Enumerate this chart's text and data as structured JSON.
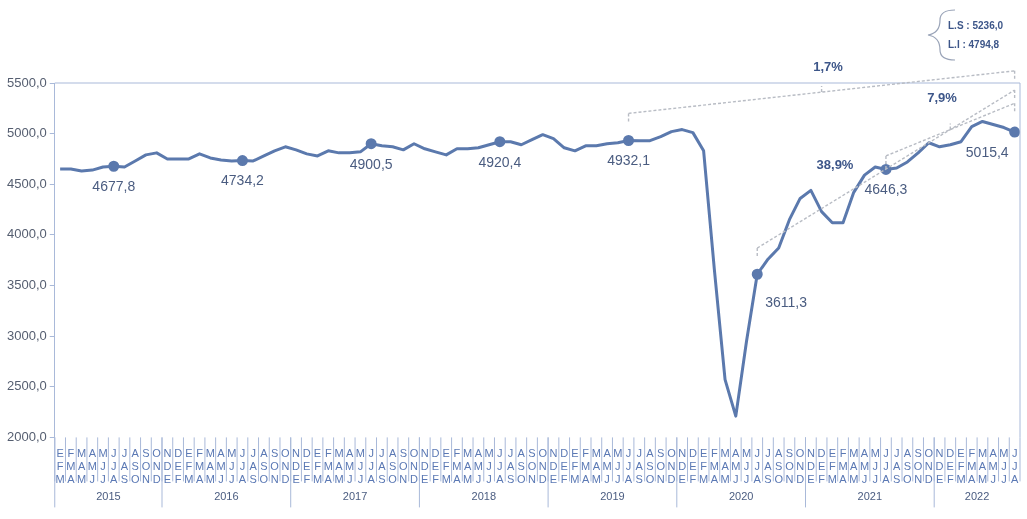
{
  "chart_data": {
    "type": "line",
    "categories": [
      "EFM",
      "FMA",
      "MAM",
      "AMJ",
      "MJJ",
      "JJA",
      "JAS",
      "ASO",
      "SON",
      "OND",
      "NDE",
      "DEF",
      "EFM",
      "FMA",
      "MAM",
      "AMJ",
      "MJJ",
      "JJA",
      "JAS",
      "ASO",
      "SON",
      "OND",
      "NDE",
      "DEF",
      "EFM",
      "FMA",
      "MAM",
      "AMJ",
      "MJJ",
      "JJA",
      "JAS",
      "ASO",
      "SON",
      "OND",
      "NDE",
      "DEF",
      "EFM",
      "FMA",
      "MAM",
      "AMJ",
      "MJJ",
      "JJA",
      "JAS",
      "ASO",
      "SON",
      "OND",
      "NDE",
      "DEF",
      "EFM",
      "FMA",
      "MAM",
      "AMJ",
      "MJJ",
      "JJA",
      "JAS",
      "ASO",
      "SON",
      "OND",
      "NDE",
      "DEF",
      "EFM",
      "FMA",
      "MAM",
      "AMJ",
      "MJJ",
      "JJA",
      "JAS",
      "ASO",
      "SON",
      "OND",
      "NDE",
      "DEF",
      "EFM",
      "FMA",
      "MAM",
      "AMJ",
      "MJJ",
      "JJA",
      "JAS",
      "ASO",
      "SON",
      "OND",
      "NDE",
      "DEF",
      "EFM",
      "FMA",
      "MAM",
      "AMJ",
      "MJJ",
      "JJA"
    ],
    "series": [
      {
        "color": "#5b79ad",
        "values": [
          4650,
          4650,
          4630,
          4640,
          4670,
          4677.8,
          4670,
          4730,
          4790,
          4810,
          4750,
          4750,
          4750,
          4800,
          4760,
          4740,
          4730,
          4734.2,
          4730,
          4780,
          4830,
          4870,
          4840,
          4800,
          4780,
          4830,
          4810,
          4810,
          4820,
          4900.5,
          4880,
          4870,
          4840,
          4900,
          4850,
          4820,
          4790,
          4850,
          4850,
          4860,
          4890,
          4920.4,
          4920,
          4890,
          4940,
          4990,
          4950,
          4860,
          4830,
          4880,
          4880,
          4900,
          4910,
          4932.1,
          4930,
          4930,
          4970,
          5020,
          5040,
          5010,
          4830,
          3660,
          2570,
          2210,
          2950,
          3611.3,
          3760,
          3870,
          4150,
          4360,
          4440,
          4230,
          4120,
          4120,
          4420,
          4590,
          4670,
          4646.3,
          4660,
          4720,
          4810,
          4910,
          4870,
          4890,
          4920,
          5070,
          5120,
          5090,
          5060,
          5015.4
        ],
        "value_labels": [
          null,
          null,
          null,
          null,
          null,
          "4677,8",
          null,
          null,
          null,
          null,
          null,
          null,
          null,
          null,
          null,
          null,
          null,
          "4734,2",
          null,
          null,
          null,
          null,
          null,
          null,
          null,
          null,
          null,
          null,
          null,
          "4900,5",
          null,
          null,
          null,
          null,
          null,
          null,
          null,
          null,
          null,
          null,
          null,
          "4920,4",
          null,
          null,
          null,
          null,
          null,
          null,
          null,
          null,
          null,
          null,
          null,
          "4932,1",
          null,
          null,
          null,
          null,
          null,
          null,
          null,
          null,
          null,
          null,
          null,
          "3611,3",
          null,
          null,
          null,
          null,
          null,
          null,
          null,
          null,
          null,
          null,
          null,
          "4646,3",
          null,
          null,
          null,
          null,
          null,
          null,
          null,
          null,
          null,
          null,
          null,
          "5015,4"
        ]
      }
    ],
    "ylim": [
      2000,
      5500
    ],
    "yticks": [
      {
        "value": 2000,
        "label": "2000,0"
      },
      {
        "value": 2500,
        "label": "2500,0"
      },
      {
        "value": 3000,
        "label": "3000,0"
      },
      {
        "value": 3500,
        "label": "3500,0"
      },
      {
        "value": 4000,
        "label": "4000,0"
      },
      {
        "value": 4500,
        "label": "4500,0"
      },
      {
        "value": 5000,
        "label": "5000,0"
      },
      {
        "value": 5500,
        "label": "5500,0"
      }
    ],
    "annotations": [
      "1,7%",
      "38,9%",
      "7,9%",
      "L.S : 5236,0",
      "L.I : 4794,8",
      "2015",
      "2016",
      "2017",
      "2018",
      "2019",
      "2020",
      "2021",
      "2022"
    ]
  }
}
